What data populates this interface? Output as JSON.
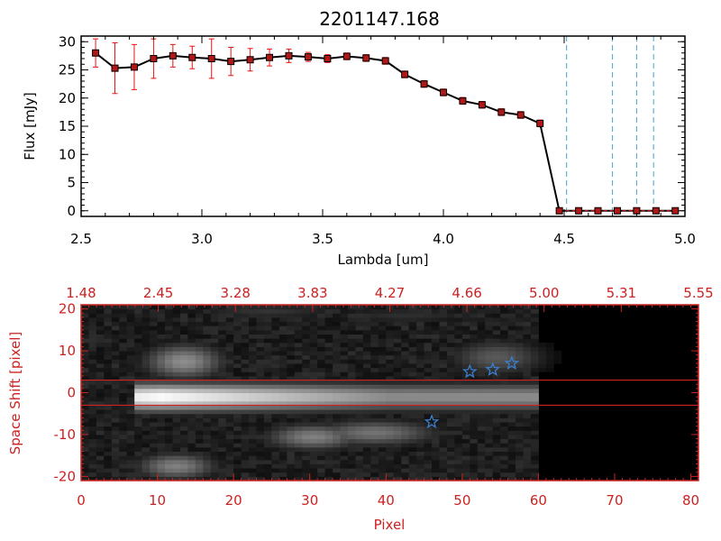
{
  "chart_data": [
    {
      "type": "line",
      "title": "2201147.168",
      "xlabel": "Lambda [um]",
      "ylabel": "Flux [mJy]",
      "xlim": [
        2.5,
        5.0
      ],
      "ylim": [
        -1,
        31
      ],
      "x_ticks": [
        "2.5",
        "3.0",
        "3.5",
        "4.0",
        "4.5",
        "5.0"
      ],
      "x_tick_values": [
        2.5,
        3.0,
        3.5,
        4.0,
        4.5,
        5.0
      ],
      "y_ticks": [
        "0",
        "5",
        "10",
        "15",
        "20",
        "25",
        "30"
      ],
      "y_tick_values": [
        0,
        5,
        10,
        15,
        20,
        25,
        30
      ],
      "grid": false,
      "series": [
        {
          "marker": "square",
          "color": "#000000",
          "marker_fill": "#b01818",
          "error_color": "#ee1111",
          "x": [
            2.56,
            2.64,
            2.72,
            2.8,
            2.88,
            2.96,
            3.04,
            3.12,
            3.2,
            3.28,
            3.36,
            3.44,
            3.52,
            3.6,
            3.68,
            3.76,
            3.84,
            3.92,
            4.0,
            4.08,
            4.16,
            4.24,
            4.32,
            4.4,
            4.48,
            4.56,
            4.64,
            4.72,
            4.8,
            4.88,
            4.96
          ],
          "y": [
            28.0,
            25.3,
            25.5,
            27.0,
            27.5,
            27.2,
            27.0,
            26.5,
            26.8,
            27.2,
            27.5,
            27.3,
            27.0,
            27.4,
            27.1,
            26.6,
            24.2,
            22.5,
            21.0,
            19.5,
            18.8,
            17.5,
            17.0,
            15.5,
            0,
            0,
            0,
            0,
            0,
            0,
            0
          ],
          "x_full": [
            2.56,
            2.64,
            2.72,
            2.8,
            2.88,
            2.96,
            3.04,
            3.12,
            3.2,
            3.28,
            3.36,
            3.44,
            3.52,
            3.6,
            3.68,
            3.76,
            3.84,
            3.92,
            4.0,
            4.08,
            4.16,
            4.24,
            4.32,
            4.4,
            4.48,
            4.56,
            4.64,
            4.72,
            4.8,
            4.88,
            4.96
          ],
          "y_err": [
            2.5,
            4.5,
            4.0,
            3.5,
            2.0,
            2.0,
            3.5,
            2.5,
            2.0,
            1.5,
            1.2,
            0.8,
            0.7,
            0.6,
            0.6,
            0.6,
            0.6,
            0.6,
            0.6,
            0.6,
            0.6,
            0.6,
            0.6,
            0.6,
            0,
            0,
            0,
            0,
            0,
            0,
            0
          ]
        }
      ],
      "vertical_lines": [
        4.51,
        4.7,
        4.8,
        4.87
      ],
      "vertical_line_color": "#4aa3c8"
    },
    {
      "type": "heatmap",
      "xlabel": "Pixel",
      "ylabel": "Space Shift [pixel]",
      "xlim": [
        0,
        81
      ],
      "ylim": [
        -21,
        21
      ],
      "x_ticks": [
        "0",
        "10",
        "20",
        "30",
        "40",
        "50",
        "60",
        "70",
        "80"
      ],
      "x_tick_values": [
        0,
        10,
        20,
        30,
        40,
        50,
        60,
        70,
        80
      ],
      "y_ticks": [
        "-20",
        "-10",
        "0",
        "10",
        "20"
      ],
      "y_tick_values": [
        -20,
        -10,
        0,
        10,
        20
      ],
      "top_ticks": [
        "1.48",
        "2.45",
        "3.28",
        "3.83",
        "4.27",
        "4.66",
        "5.00",
        "5.31",
        "5.55"
      ],
      "axis_color": "#cc2222",
      "horizontal_lines": [
        3,
        -3
      ],
      "star_markers": [
        {
          "x": 51,
          "y": 5
        },
        {
          "x": 54,
          "y": 5.5
        },
        {
          "x": 56.5,
          "y": 7
        },
        {
          "x": 46,
          "y": -7
        }
      ],
      "star_color": "#3a7fd0",
      "trace": {
        "x_start": 7,
        "x_end": 60,
        "peak_x": 10,
        "y_center": -1,
        "y_halfwidth": 4
      },
      "blobs": [
        {
          "x": 13,
          "y": 7,
          "w": 5,
          "h": 4,
          "level": 0.55
        },
        {
          "x": 30,
          "y": -11,
          "w": 6,
          "h": 3,
          "level": 0.5
        },
        {
          "x": 38,
          "y": -10,
          "w": 8,
          "h": 3,
          "level": 0.45
        },
        {
          "x": 12,
          "y": -18,
          "w": 5,
          "h": 3,
          "level": 0.5
        },
        {
          "x": 54,
          "y": 8,
          "w": 6,
          "h": 4,
          "level": 0.35
        },
        {
          "x": 24,
          "y": 19,
          "w": 10,
          "h": 2,
          "level": 0.2
        },
        {
          "x": 42,
          "y": 18,
          "w": 10,
          "h": 2,
          "level": 0.18
        }
      ]
    }
  ]
}
